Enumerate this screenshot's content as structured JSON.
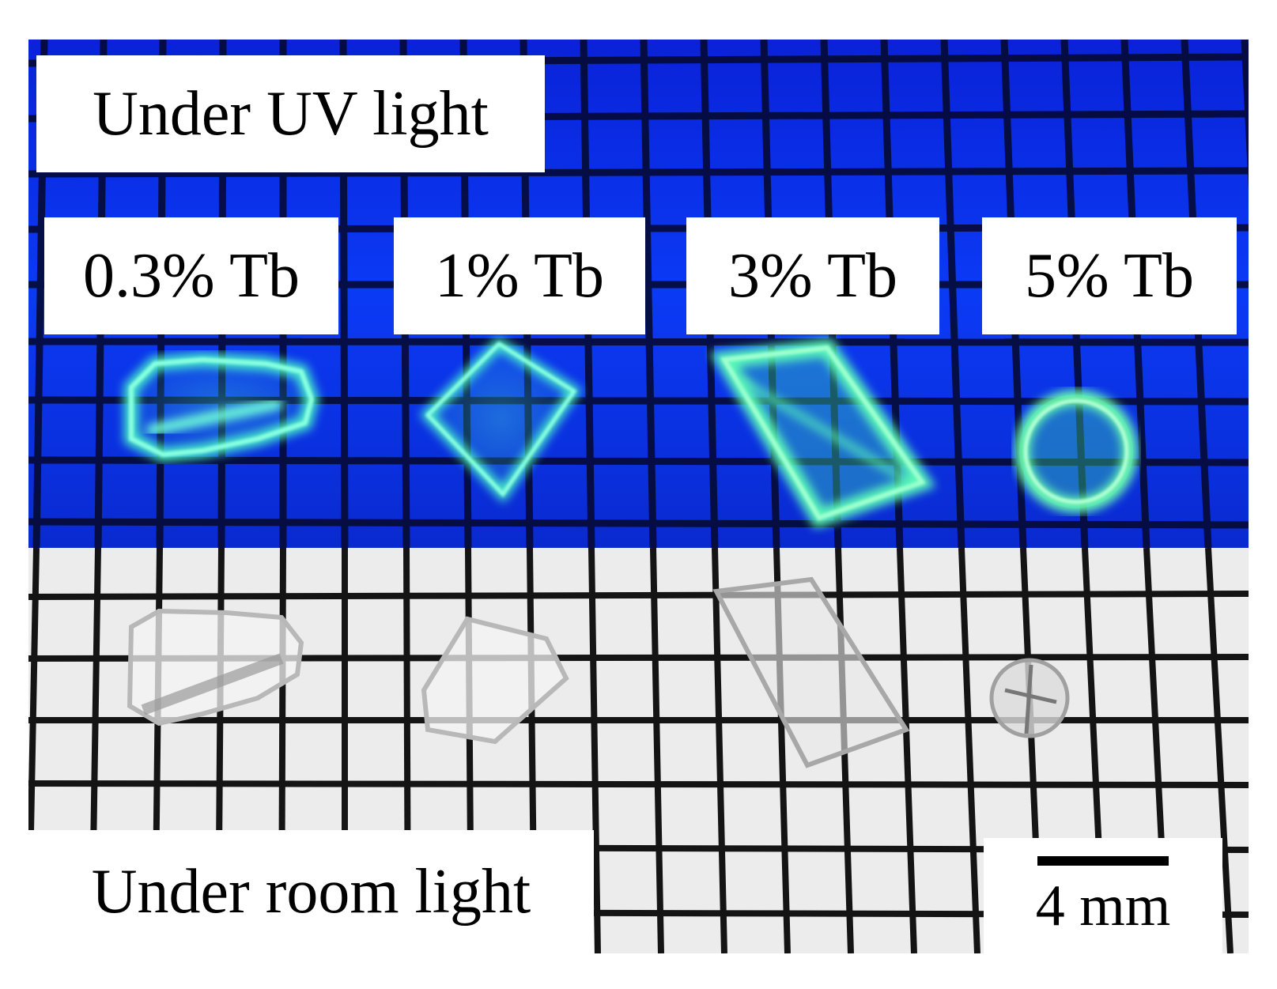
{
  "panels": {
    "uv": {
      "title": "Under UV light",
      "background_color": "#0a2ef0",
      "glow_color": "#4dffc8",
      "samples": [
        "0.3% Tb",
        "1% Tb",
        "3% Tb",
        "5% Tb"
      ]
    },
    "room": {
      "title": "Under room light",
      "background_color": "#ececec"
    }
  },
  "scale_bar": {
    "label": "4 mm"
  },
  "grid_color": "#111111"
}
